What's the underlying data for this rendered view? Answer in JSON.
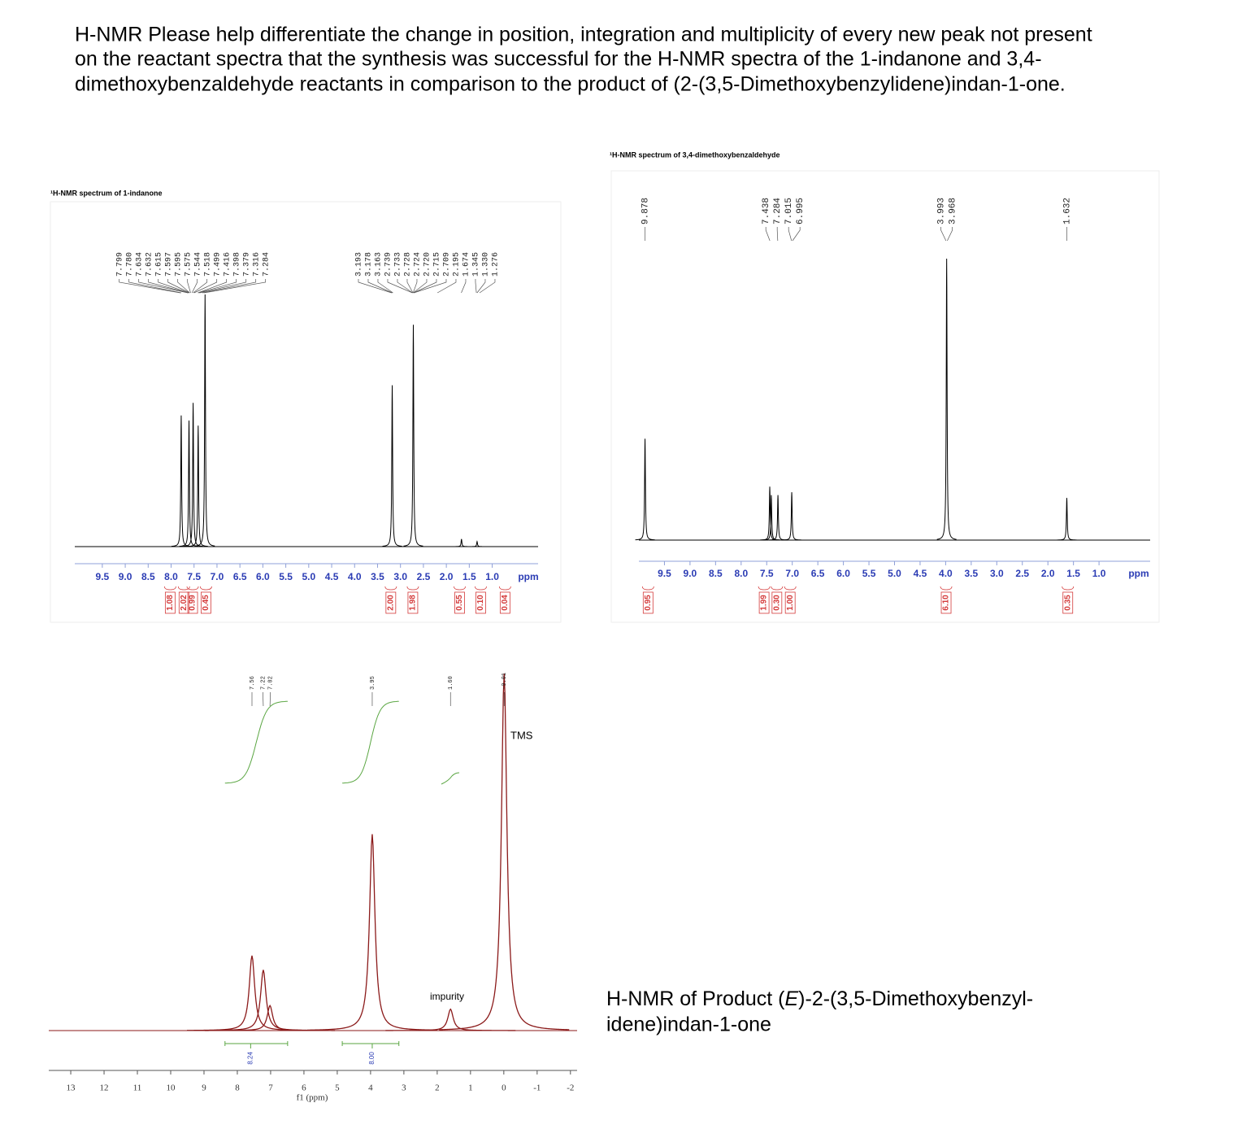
{
  "question": [
    "H-NMR Please help differentiate the change in position, integration and multiplicity of every new peak not present",
    "on the reactant spectra that the synthesis was successful for the H-NMR spectra of the 1-indanone and 3,4-",
    "dimethoxybenzaldehyde reactants in comparison to the product of (2-(3,5-Dimethoxybenzylidene)indan-1-one."
  ],
  "caption": [
    [
      "H-NMR of Product (",
      "E",
      ")-2-(3,5-Dimethoxybenzyl-"
    ],
    [
      "idene)indan-1-one"
    ]
  ],
  "chart_data": [
    {
      "type": "nmr",
      "title": "¹H-NMR spectrum of 1-indanone",
      "xlim": [
        10.1,
        0
      ],
      "xticks": [
        9.5,
        {
          "value": 9,
          "label": "9.0"
        },
        8.5,
        {
          "value": 8,
          "label": "8.0"
        },
        7.5,
        {
          "value": 7,
          "label": "7.0"
        },
        6.5,
        {
          "value": 6,
          "label": "6.0"
        },
        5.5,
        {
          "value": 5,
          "label": "5.0"
        },
        4.5,
        {
          "value": 4,
          "label": "4.0"
        },
        3.5,
        {
          "value": 3,
          "label": "3.0"
        },
        2.5,
        {
          "value": 2,
          "label": "2.0"
        },
        1.5,
        {
          "value": 1,
          "label": "1.0"
        }
      ],
      "xlabel": "ppm",
      "color": "#000000",
      "peak_labels": [
        "7.799",
        "7.780",
        "7.634",
        "7.632",
        "7.615",
        "7.597",
        "7.595",
        "7.575",
        "7.544",
        "7.518",
        "7.499",
        "7.416",
        "7.398",
        "7.379",
        "7.316",
        "7.284",
        "3.193",
        "3.178",
        "3.163",
        "2.739",
        "2.733",
        "2.728",
        "2.724",
        "2.720",
        "2.715",
        "2.709",
        "2.195",
        "1.674",
        "1.345",
        "1.330",
        "1.276"
      ],
      "peaks": {
        "ppm": [
          7.78,
          7.61,
          7.52,
          7.41,
          7.26,
          3.18,
          2.72,
          1.67,
          1.33
        ],
        "height": [
          52,
          50,
          57,
          48,
          100,
          64,
          88,
          3,
          2
        ]
      },
      "integrals": {
        "ppm": [
          8.02,
          7.72,
          7.53,
          7.24,
          3.21,
          2.73,
          1.71,
          1.25,
          0.72
        ],
        "labels": [
          "1.08",
          "2.02",
          "0.99",
          "0.45",
          "2.00",
          "1.98",
          "0.55",
          "0.10",
          "0.04"
        ]
      }
    },
    {
      "type": "nmr",
      "title": "¹H-NMR spectrum of 3,4-dimethoxybenzaldehyde",
      "xlim": [
        10,
        0
      ],
      "xticks": [
        9.5,
        {
          "value": 9,
          "label": "9.0"
        },
        8.5,
        {
          "value": 8,
          "label": "8.0"
        },
        7.5,
        {
          "value": 7,
          "label": "7.0"
        },
        6.5,
        {
          "value": 6,
          "label": "6.0"
        },
        5.5,
        {
          "value": 5,
          "label": "5.0"
        },
        4.5,
        {
          "value": 4,
          "label": "4.0"
        },
        3.5,
        {
          "value": 3,
          "label": "3.0"
        },
        2.5,
        {
          "value": 2,
          "label": "2.0"
        },
        1.5,
        {
          "value": 1,
          "label": "1.0"
        }
      ],
      "xlabel": "ppm",
      "color": "#000000",
      "peak_labels": [
        "9.878",
        "7.438",
        "7.284",
        "7.015",
        "6.995",
        "3.993",
        "3.968",
        "1.632"
      ],
      "peaks": {
        "ppm": [
          9.88,
          7.44,
          7.41,
          7.28,
          7.01,
          3.98,
          1.63
        ],
        "height": [
          36,
          19,
          16,
          16,
          17,
          100,
          15
        ]
      },
      "integrals": {
        "ppm": [
          9.82,
          7.55,
          7.3,
          7.04,
          3.99,
          1.61
        ],
        "labels": [
          "0.95",
          "1.99",
          "0.30",
          "1.00",
          "6.10",
          "0.35"
        ]
      }
    },
    {
      "type": "nmr",
      "xlim": [
        13.66,
        -2.2
      ],
      "xticks": [
        13,
        12,
        11,
        10,
        9,
        8,
        7,
        6,
        5,
        4,
        3,
        2,
        1,
        0,
        -1,
        -2
      ],
      "xlabel": "f1 (ppm)",
      "color": "#8b1a1a",
      "peak_labels": [
        "7.56",
        "7.22",
        "7.02",
        "3.95",
        "1.60",
        "-0.01"
      ],
      "peaks": {
        "ppm": [
          7.56,
          7.22,
          7.02,
          3.95,
          1.6,
          -0.01
        ],
        "height": [
          21,
          17,
          7,
          55,
          6,
          100
        ]
      },
      "integrals": {
        "ppm": [
          7.6,
          3.95
        ],
        "labels": [
          "8.24",
          "8.00"
        ],
        "from": [
          8.37,
          4.85
        ],
        "to": [
          6.49,
          3.15
        ]
      },
      "annotations": [
        "TMS",
        "impurity"
      ]
    }
  ]
}
